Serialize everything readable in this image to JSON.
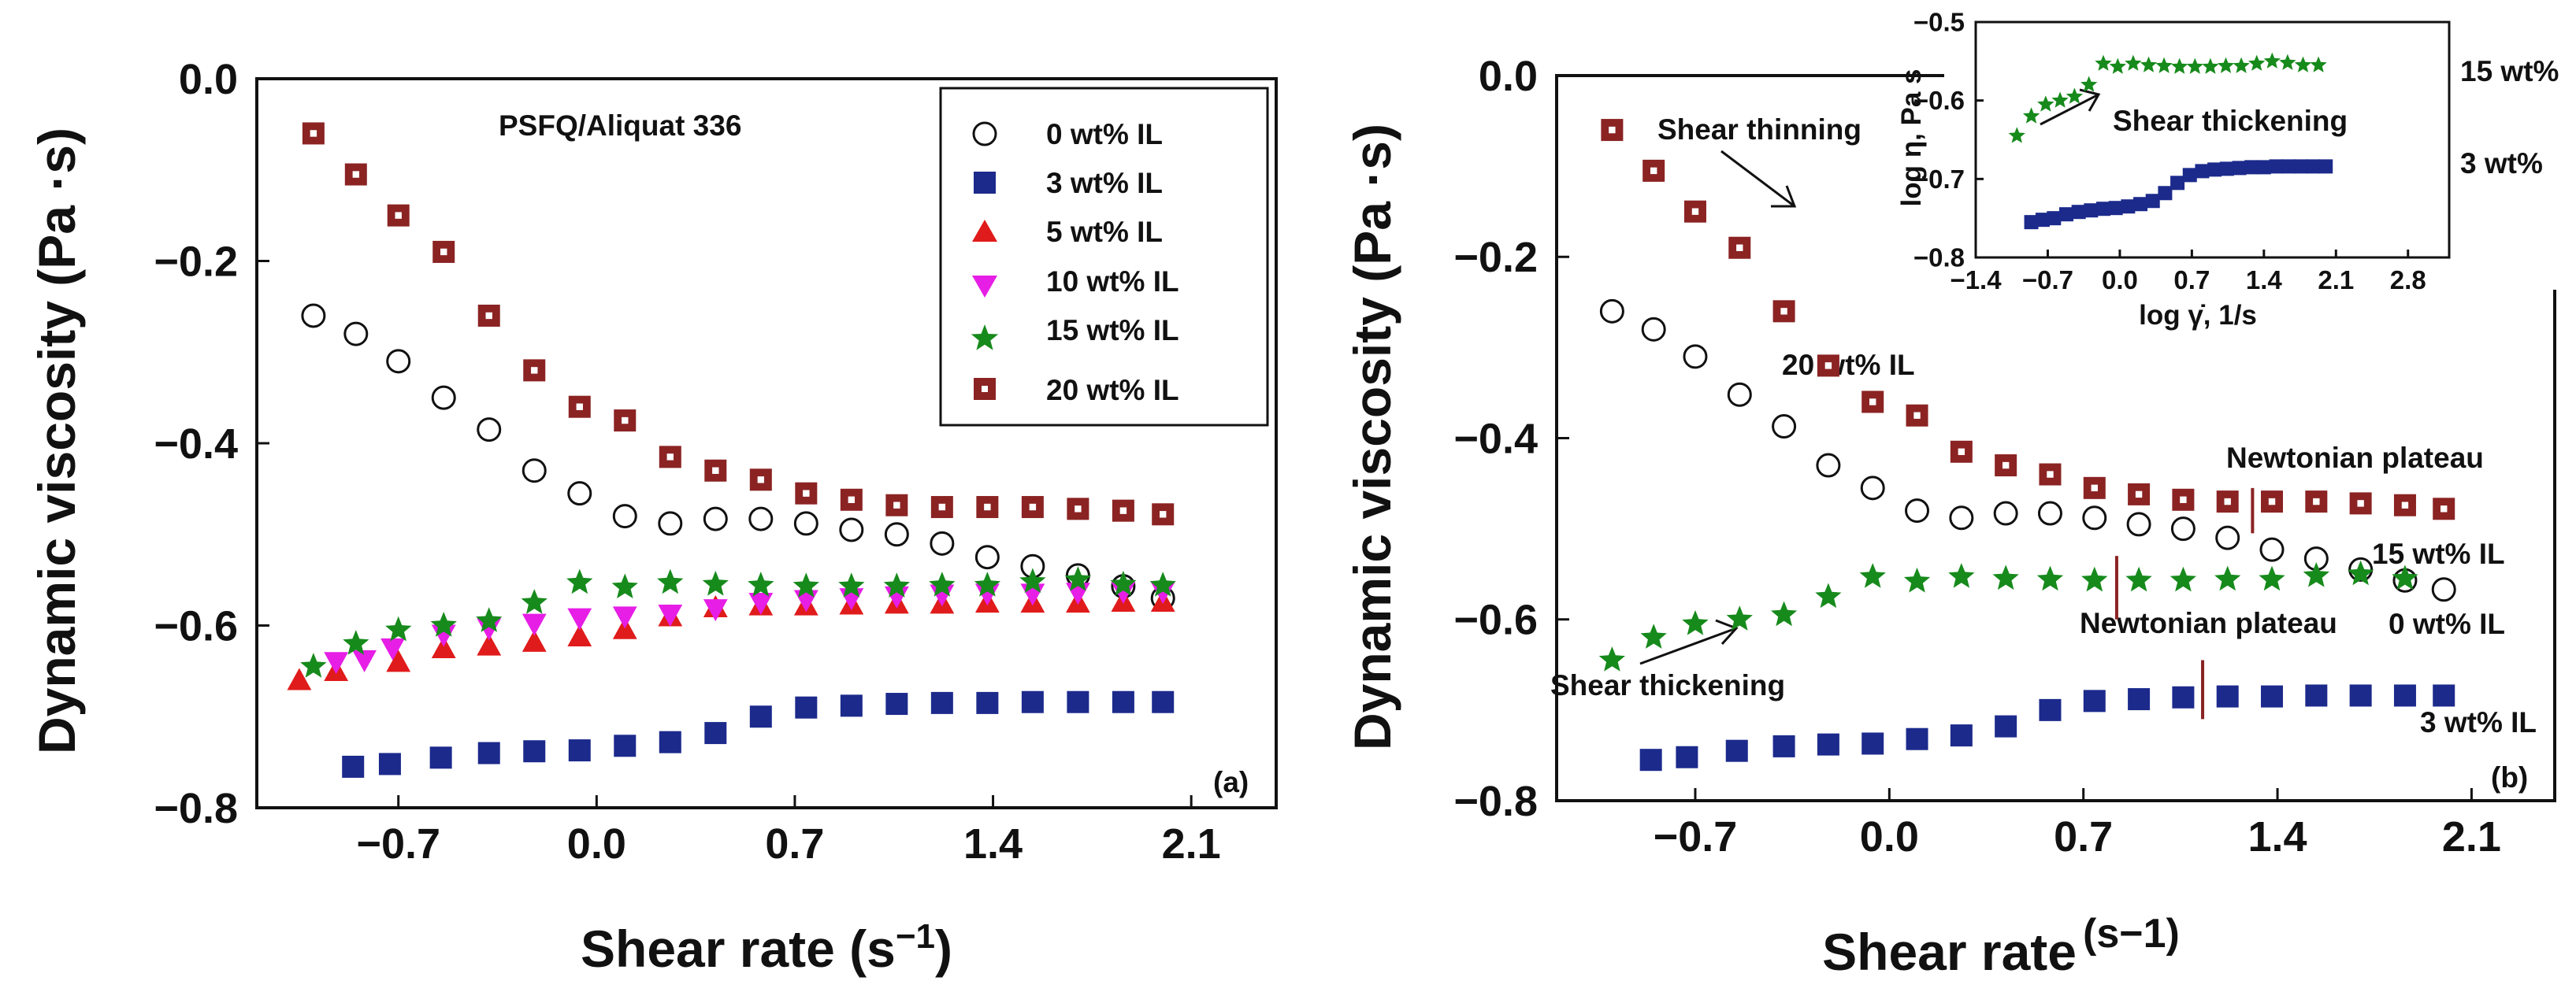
{
  "chart_data": [
    {
      "panel": "(a)",
      "type": "scatter",
      "title": "PSFQ/Aliquat 336",
      "xlabel_main": "Shear rate (s",
      "xlabel_sup": "−1",
      "xlabel_end": ")",
      "ylabel": "Dynamic viscosity (Pa ·s)",
      "xlim": [
        -1.2,
        2.4
      ],
      "ylim": [
        -0.8,
        0.0
      ],
      "xticks": [
        "−0.7",
        "0.0",
        "0.7",
        "1.4",
        "2.1"
      ],
      "xtick_values": [
        -0.7,
        0.0,
        0.7,
        1.4,
        2.1
      ],
      "yticks": [
        "−0.8",
        "−0.6",
        "−0.4",
        "−0.2",
        "0.0"
      ],
      "ytick_values": [
        -0.8,
        -0.6,
        -0.4,
        -0.2,
        0.0
      ],
      "legend": {
        "position": "top-right"
      },
      "series": [
        {
          "name": "0 wt% IL",
          "marker": "circle-open",
          "color": "#111111",
          "x": [
            -1.0,
            -0.85,
            -0.7,
            -0.54,
            -0.38,
            -0.22,
            -0.06,
            0.1,
            0.26,
            0.42,
            0.58,
            0.74,
            0.9,
            1.06,
            1.22,
            1.38,
            1.54,
            1.7,
            1.86,
            2.0
          ],
          "y": [
            -0.26,
            -0.28,
            -0.31,
            -0.35,
            -0.385,
            -0.43,
            -0.455,
            -0.48,
            -0.488,
            -0.483,
            -0.483,
            -0.488,
            -0.495,
            -0.5,
            -0.51,
            -0.525,
            -0.535,
            -0.545,
            -0.557,
            -0.57
          ]
        },
        {
          "name": "3 wt% IL",
          "marker": "square",
          "color": "#1c2a8c",
          "x": [
            -0.86,
            -0.73,
            -0.55,
            -0.38,
            -0.22,
            -0.06,
            0.1,
            0.26,
            0.42,
            0.58,
            0.74,
            0.9,
            1.06,
            1.22,
            1.38,
            1.54,
            1.7,
            1.86,
            2.0
          ],
          "y": [
            -0.755,
            -0.752,
            -0.745,
            -0.74,
            -0.738,
            -0.737,
            -0.732,
            -0.728,
            -0.718,
            -0.7,
            -0.69,
            -0.688,
            -0.686,
            -0.685,
            -0.685,
            -0.684,
            -0.684,
            -0.684,
            -0.684
          ]
        },
        {
          "name": "5 wt% IL",
          "marker": "triangle-up",
          "color": "#e01b1b",
          "x": [
            -1.05,
            -0.92,
            -0.7,
            -0.54,
            -0.38,
            -0.22,
            -0.06,
            0.1,
            0.26,
            0.42,
            0.58,
            0.74,
            0.9,
            1.06,
            1.22,
            1.38,
            1.54,
            1.7,
            1.86,
            2.0
          ],
          "y": [
            -0.66,
            -0.65,
            -0.64,
            -0.625,
            -0.622,
            -0.618,
            -0.612,
            -0.604,
            -0.59,
            -0.58,
            -0.578,
            -0.578,
            -0.577,
            -0.576,
            -0.576,
            -0.575,
            -0.575,
            -0.575,
            -0.574,
            -0.574
          ]
        },
        {
          "name": "10 wt% IL",
          "marker": "triangle-down",
          "color": "#e61ee6",
          "x": [
            -0.92,
            -0.82,
            -0.72,
            -0.54,
            -0.38,
            -0.22,
            -0.06,
            0.1,
            0.26,
            0.42,
            0.58,
            0.74,
            0.9,
            1.06,
            1.22,
            1.38,
            1.54,
            1.7,
            1.86,
            2.0
          ],
          "y": [
            -0.64,
            -0.638,
            -0.625,
            -0.61,
            -0.603,
            -0.598,
            -0.592,
            -0.59,
            -0.588,
            -0.582,
            -0.575,
            -0.572,
            -0.57,
            -0.568,
            -0.566,
            -0.565,
            -0.565,
            -0.564,
            -0.563,
            -0.563
          ]
        },
        {
          "name": "15 wt% IL",
          "marker": "star",
          "color": "#178a1c",
          "x": [
            -1.0,
            -0.85,
            -0.7,
            -0.54,
            -0.38,
            -0.22,
            -0.06,
            0.1,
            0.26,
            0.42,
            0.58,
            0.74,
            0.9,
            1.06,
            1.22,
            1.38,
            1.54,
            1.7,
            1.86,
            2.0
          ],
          "y": [
            -0.645,
            -0.62,
            -0.605,
            -0.6,
            -0.595,
            -0.575,
            -0.553,
            -0.558,
            -0.553,
            -0.555,
            -0.556,
            -0.557,
            -0.557,
            -0.557,
            -0.556,
            -0.556,
            -0.552,
            -0.55,
            -0.555,
            -0.556
          ]
        },
        {
          "name": "20 wt% IL",
          "marker": "square-dot",
          "color": "#8b2323",
          "x": [
            -1.0,
            -0.85,
            -0.7,
            -0.54,
            -0.38,
            -0.22,
            -0.06,
            0.1,
            0.26,
            0.42,
            0.58,
            0.74,
            0.9,
            1.06,
            1.22,
            1.38,
            1.54,
            1.7,
            1.86,
            2.0
          ],
          "y": [
            -0.06,
            -0.105,
            -0.15,
            -0.19,
            -0.26,
            -0.32,
            -0.36,
            -0.375,
            -0.415,
            -0.43,
            -0.44,
            -0.455,
            -0.462,
            -0.468,
            -0.47,
            -0.47,
            -0.47,
            -0.472,
            -0.474,
            -0.478
          ]
        }
      ]
    },
    {
      "panel": "(b)",
      "type": "scatter",
      "xlabel_main": "Shear rate",
      "xlabel_sup": "(s−1)",
      "ylabel": "Dynamic viscosity (Pa ·s)",
      "xlim": [
        -1.2,
        2.4
      ],
      "ylim": [
        -0.8,
        0.0
      ],
      "xticks": [
        "−0.7",
        "0.0",
        "0.7",
        "1.4",
        "2.1"
      ],
      "xtick_values": [
        -0.7,
        0.0,
        0.7,
        1.4,
        2.1
      ],
      "yticks": [
        "−0.8",
        "−0.6",
        "−0.4",
        "−0.2",
        "0.0"
      ],
      "ytick_values": [
        -0.8,
        -0.6,
        -0.4,
        -0.2,
        0.0
      ],
      "annotations": {
        "shear_thinning": "Shear thinning",
        "label_20": "20 wt% IL",
        "newtonian_1": "Newtonian plateau",
        "label_15": "15 wt% IL",
        "newtonian_2": "Newtonian plateau",
        "label_0": "0 wt% IL",
        "shear_thickening": "Shear thickening",
        "label_3": "3 wt% IL"
      },
      "series": [
        {
          "name": "0 wt% IL",
          "marker": "circle-open",
          "color": "#111111",
          "x": [
            -1.0,
            -0.85,
            -0.7,
            -0.54,
            -0.38,
            -0.22,
            -0.06,
            0.1,
            0.26,
            0.42,
            0.58,
            0.74,
            0.9,
            1.06,
            1.22,
            1.38,
            1.54,
            1.7,
            1.86,
            2.0
          ],
          "y": [
            -0.26,
            -0.28,
            -0.31,
            -0.352,
            -0.387,
            -0.43,
            -0.455,
            -0.48,
            -0.488,
            -0.483,
            -0.483,
            -0.488,
            -0.495,
            -0.5,
            -0.51,
            -0.523,
            -0.533,
            -0.545,
            -0.557,
            -0.567
          ]
        },
        {
          "name": "3 wt% IL",
          "marker": "square",
          "color": "#1c2a8c",
          "x": [
            -0.86,
            -0.73,
            -0.55,
            -0.38,
            -0.22,
            -0.06,
            0.1,
            0.26,
            0.42,
            0.58,
            0.74,
            0.9,
            1.06,
            1.22,
            1.38,
            1.54,
            1.7,
            1.86,
            2.0
          ],
          "y": [
            -0.755,
            -0.752,
            -0.745,
            -0.74,
            -0.738,
            -0.737,
            -0.732,
            -0.728,
            -0.718,
            -0.7,
            -0.69,
            -0.688,
            -0.686,
            -0.685,
            -0.685,
            -0.684,
            -0.684,
            -0.684,
            -0.684
          ]
        },
        {
          "name": "15 wt% IL",
          "marker": "star",
          "color": "#178a1c",
          "x": [
            -1.0,
            -0.85,
            -0.7,
            -0.54,
            -0.38,
            -0.22,
            -0.06,
            0.1,
            0.26,
            0.42,
            0.58,
            0.74,
            0.9,
            1.06,
            1.22,
            1.38,
            1.54,
            1.7,
            1.86
          ],
          "y": [
            -0.645,
            -0.62,
            -0.605,
            -0.6,
            -0.595,
            -0.575,
            -0.553,
            -0.558,
            -0.553,
            -0.555,
            -0.556,
            -0.557,
            -0.557,
            -0.557,
            -0.556,
            -0.556,
            -0.552,
            -0.55,
            -0.555
          ]
        },
        {
          "name": "20 wt% IL",
          "marker": "square-dot",
          "color": "#8b2323",
          "x": [
            -1.0,
            -0.85,
            -0.7,
            -0.54,
            -0.38,
            -0.22,
            -0.06,
            0.1,
            0.26,
            0.42,
            0.58,
            0.74,
            0.9,
            1.06,
            1.22,
            1.38,
            1.54,
            1.7,
            1.86,
            2.0
          ],
          "y": [
            -0.06,
            -0.105,
            -0.15,
            -0.19,
            -0.26,
            -0.32,
            -0.36,
            -0.375,
            -0.415,
            -0.43,
            -0.44,
            -0.455,
            -0.462,
            -0.468,
            -0.47,
            -0.47,
            -0.47,
            -0.472,
            -0.474,
            -0.478
          ]
        }
      ],
      "plateau_markers": [
        {
          "x": 1.31,
          "y_from": -0.455,
          "y_to": -0.505
        },
        {
          "x": 0.82,
          "y_from": -0.53,
          "y_to": -0.6
        },
        {
          "x": 1.13,
          "y_from": -0.645,
          "y_to": -0.71
        }
      ]
    },
    {
      "panel": "inset",
      "type": "scatter",
      "xlabel": "log γ̇, 1/s",
      "ylabel": "log η, Pa s",
      "xlim": [
        -1.4,
        3.2
      ],
      "ylim": [
        -0.8,
        -0.5
      ],
      "xticks": [
        "−1.4",
        "−0.7",
        "0.0",
        "0.7",
        "1.4",
        "2.1",
        "2.8"
      ],
      "xtick_values": [
        -1.4,
        -0.7,
        0.0,
        0.7,
        1.4,
        2.1,
        2.8
      ],
      "yticks": [
        "−0.8",
        "−0.7",
        "−0.6",
        "−0.5"
      ],
      "ytick_values": [
        -0.8,
        -0.7,
        -0.6,
        -0.5
      ],
      "annotations": {
        "label_15": "15 wt%",
        "label_3": "3 wt%",
        "shear_thickening": "Shear thickening"
      },
      "series": [
        {
          "name": "15 wt%",
          "marker": "star",
          "color": "#178a1c",
          "x": [
            -1.0,
            -0.86,
            -0.72,
            -0.58,
            -0.44,
            -0.3,
            -0.16,
            -0.02,
            0.13,
            0.28,
            0.43,
            0.58,
            0.73,
            0.88,
            1.03,
            1.18,
            1.33,
            1.48,
            1.63,
            1.78,
            1.93
          ],
          "y": [
            -0.645,
            -0.62,
            -0.605,
            -0.6,
            -0.595,
            -0.58,
            -0.553,
            -0.557,
            -0.553,
            -0.555,
            -0.556,
            -0.557,
            -0.557,
            -0.557,
            -0.556,
            -0.556,
            -0.553,
            -0.55,
            -0.552,
            -0.555,
            -0.555
          ]
        },
        {
          "name": "3 wt%",
          "marker": "square",
          "color": "#1c2a8c",
          "x": [
            -0.86,
            -0.75,
            -0.64,
            -0.52,
            -0.4,
            -0.28,
            -0.16,
            -0.04,
            0.08,
            0.2,
            0.32,
            0.44,
            0.56,
            0.68,
            0.8,
            0.92,
            1.04,
            1.16,
            1.28,
            1.4,
            1.52,
            1.64,
            1.76,
            1.88,
            2.0
          ],
          "y": [
            -0.755,
            -0.752,
            -0.75,
            -0.745,
            -0.742,
            -0.74,
            -0.738,
            -0.737,
            -0.735,
            -0.732,
            -0.728,
            -0.718,
            -0.705,
            -0.695,
            -0.69,
            -0.688,
            -0.687,
            -0.686,
            -0.685,
            -0.685,
            -0.684,
            -0.684,
            -0.684,
            -0.684,
            -0.684
          ]
        }
      ]
    }
  ]
}
